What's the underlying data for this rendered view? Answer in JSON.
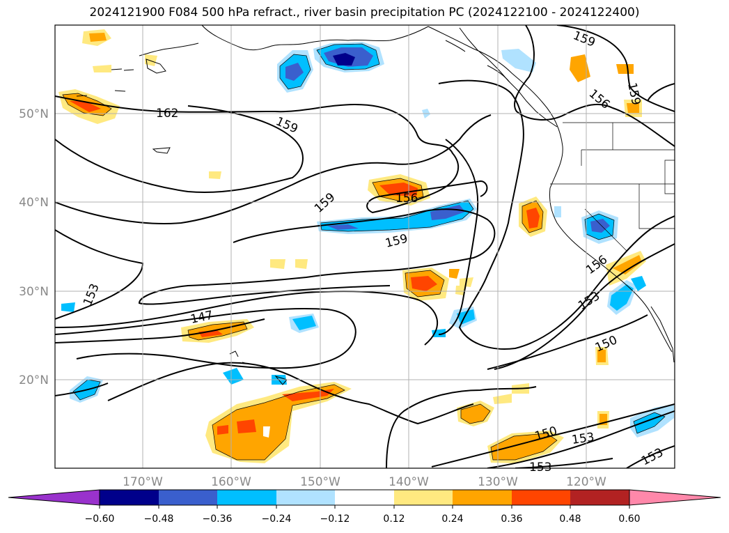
{
  "title": "2024121900 F084 500 hPa refract., river basin precipitation PC (2024122100 - 2024122400)",
  "map": {
    "projection": "cylindrical",
    "lon_range": [
      -180,
      -110
    ],
    "lat_range": [
      10,
      60
    ],
    "lat_ticks": [
      {
        "value": 20,
        "label": "20°N"
      },
      {
        "value": 30,
        "label": "30°N"
      },
      {
        "value": 40,
        "label": "40°N"
      },
      {
        "value": 50,
        "label": "50°N"
      }
    ],
    "lon_ticks": [
      {
        "value": -170,
        "label": "170°W"
      },
      {
        "value": -160,
        "label": "160°W"
      },
      {
        "value": -150,
        "label": "150°W"
      },
      {
        "value": -140,
        "label": "140°W"
      },
      {
        "value": -130,
        "label": "130°W"
      },
      {
        "value": -120,
        "label": "120°W"
      }
    ],
    "grid": true,
    "contour_labels": [
      "162",
      "159",
      "159",
      "156",
      "159",
      "159",
      "153",
      "147",
      "156",
      "153",
      "150",
      "150",
      "153",
      "153",
      "153",
      "156",
      "159"
    ]
  },
  "colorbar": {
    "tick_labels": [
      "−0.60",
      "−0.48",
      "−0.36",
      "−0.24",
      "−0.12",
      "0.12",
      "0.24",
      "0.36",
      "0.48",
      "0.60"
    ],
    "colors": [
      "#9932cc",
      "#00008b",
      "#3a5fcd",
      "#00bfff",
      "#b0e2ff",
      "#ffffff",
      "#ffe980",
      "#ffa500",
      "#ff4500",
      "#b22222",
      "#ff88aa"
    ],
    "extend": "both"
  }
}
